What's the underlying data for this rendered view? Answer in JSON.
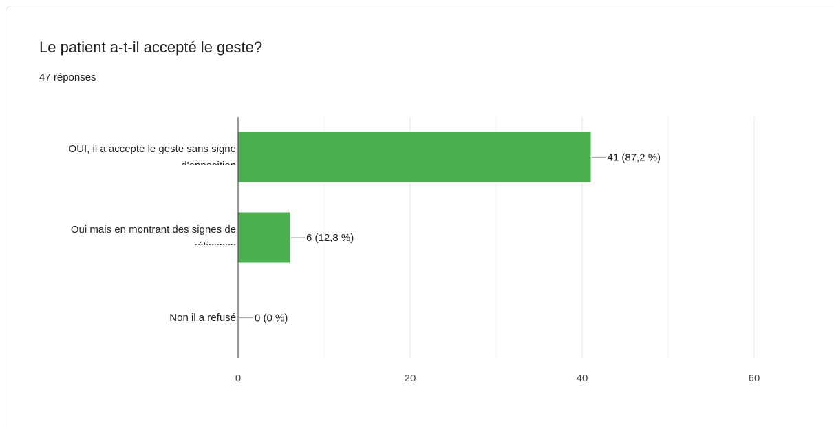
{
  "chart_data": {
    "type": "bar",
    "orientation": "horizontal",
    "title": "Le patient a-t-il accepté le geste?",
    "subtitle": "47 réponses",
    "categories": [
      "OUI, il a accepté le geste sans signe d'opposition",
      "Oui mais en montrant des signes de réticence",
      "Non il a refusé"
    ],
    "values": [
      41,
      6,
      0
    ],
    "value_labels": [
      "41 (87,2 %)",
      "6 (12,8 %)",
      "0 (0 %)"
    ],
    "color": "#4caf50",
    "xlim": [
      0,
      60
    ],
    "xticks": [
      0,
      20,
      40,
      60
    ],
    "minor_xticks": [
      10,
      30,
      50
    ],
    "grid": true
  }
}
